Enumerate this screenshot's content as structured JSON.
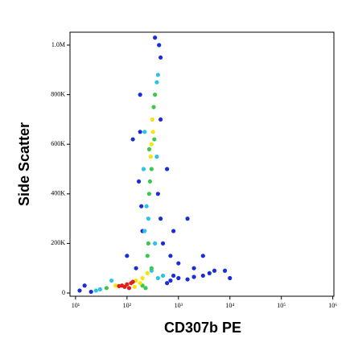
{
  "chart_data": {
    "type": "scatter",
    "x_label": "CD307b PE",
    "y_label": "Side Scatter",
    "xscale": "log",
    "xlim": [
      7.8,
      1050000
    ],
    "xticks": [
      {
        "value": 10,
        "label": "10¹"
      },
      {
        "value": 100,
        "label": "10²"
      },
      {
        "value": 1000,
        "label": "10³"
      },
      {
        "value": 10000,
        "label": "10⁴"
      },
      {
        "value": 100000,
        "label": "10⁵"
      },
      {
        "value": 1000000,
        "label": "10⁶"
      }
    ],
    "ylim": [
      -13000,
      1052000
    ],
    "yticks": [
      0,
      {
        "value": 200000,
        "label": "200K"
      },
      {
        "value": 400000,
        "label": "400K"
      },
      {
        "value": 600000,
        "label": "600K"
      },
      {
        "value": 800000,
        "label": "800K"
      },
      {
        "value": 1000000,
        "label": "1.0M"
      }
    ],
    "series": [
      {
        "color": "#1a2dd6",
        "x": [
          20,
          15,
          12,
          700,
          1000,
          1500,
          2000,
          3000,
          4000,
          5000,
          600,
          800,
          450,
          420,
          350,
          180,
          170,
          200,
          450,
          500,
          700,
          1000,
          2000,
          1500,
          3000,
          180,
          450,
          600,
          130,
          100,
          150,
          800,
          10000,
          8000,
          400,
          190
        ],
        "y": [
          5000,
          30000,
          10000,
          50000,
          60000,
          55000,
          65000,
          70000,
          80000,
          90000,
          40000,
          70000,
          950000,
          1000000,
          1030000,
          650000,
          450000,
          250000,
          300000,
          200000,
          150000,
          120000,
          100000,
          300000,
          150000,
          800000,
          700000,
          500000,
          620000,
          150000,
          100000,
          250000,
          60000,
          90000,
          400000,
          350000
        ]
      },
      {
        "color": "#2bc4e8",
        "x": [
          260,
          240,
          220,
          380,
          400,
          30,
          25,
          400,
          500,
          350,
          210,
          220,
          380,
          300,
          50
        ],
        "y": [
          300000,
          350000,
          250000,
          850000,
          880000,
          15000,
          10000,
          60000,
          70000,
          200000,
          500000,
          650000,
          550000,
          90000,
          50000
        ]
      },
      {
        "color": "#3cc84a",
        "x": [
          300,
          280,
          330,
          350,
          270,
          250,
          260,
          40,
          200,
          300,
          230,
          340,
          270
        ],
        "y": [
          500000,
          450000,
          750000,
          800000,
          400000,
          150000,
          200000,
          20000,
          30000,
          100000,
          20000,
          620000,
          580000
        ]
      },
      {
        "color": "#f5e50a",
        "x": [
          60,
          150,
          200,
          180,
          140,
          250,
          300,
          320,
          290,
          310
        ],
        "y": [
          30000,
          50000,
          60000,
          40000,
          25000,
          80000,
          600000,
          650000,
          550000,
          700000
        ]
      },
      {
        "color": "#e0201b",
        "x": [
          80,
          100,
          120,
          90,
          110,
          130,
          70
        ],
        "y": [
          30000,
          35000,
          40000,
          25000,
          20000,
          45000,
          28000
        ]
      }
    ]
  }
}
